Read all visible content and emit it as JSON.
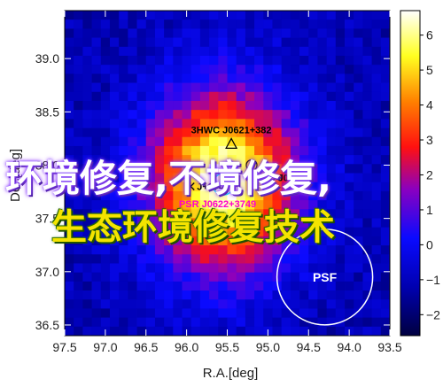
{
  "chart_data": {
    "type": "heatmap",
    "xlabel": "R.A.[deg]",
    "ylabel": "Dec[deg]",
    "xlim": [
      97.5,
      93.5
    ],
    "ylim": [
      36.4,
      39.45
    ],
    "x_ticks": [
      "97.5",
      "97.0",
      "96.5",
      "96.0",
      "95.5",
      "95.0",
      "94.5",
      "94.0",
      "93.5"
    ],
    "y_ticks": [
      "36.5",
      "37.0",
      "37.5",
      "38.0",
      "38.5",
      "39.0"
    ],
    "colorbar": {
      "range": [
        -2.6,
        6.7
      ],
      "ticks": [
        "−2",
        "−1",
        "0",
        "1",
        "2",
        "3",
        "4",
        "5",
        "6"
      ],
      "colors": [
        "#000040",
        "#0a0aff",
        "#ff1010",
        "#ffff20",
        "#ffffff"
      ]
    },
    "peak": {
      "ra": 95.55,
      "dec": 37.85,
      "value": 6.6
    },
    "sources": [
      {
        "label": "3HWC J0621+382",
        "marker": "triangle",
        "ra": 95.45,
        "dec": 38.2,
        "color": "#000000"
      },
      {
        "label": "4HWC J0",
        "marker": "circle",
        "ra": 95.2,
        "dec": 38.0,
        "color": "#000000"
      },
      {
        "label": "J+3749",
        "marker": "x",
        "ra": 95.95,
        "dec": 37.8,
        "color": "#000000"
      },
      {
        "label": "PSR J0622+3749",
        "marker": "circle",
        "ra": 95.55,
        "dec": 37.82,
        "color": "#ff00cc"
      }
    ],
    "psf": {
      "label": "PSF",
      "ra": 94.3,
      "dec": 36.95
    }
  },
  "overlay_text": {
    "line1": "环境修复,不境修复,",
    "line2": "生态环境修复技术"
  }
}
